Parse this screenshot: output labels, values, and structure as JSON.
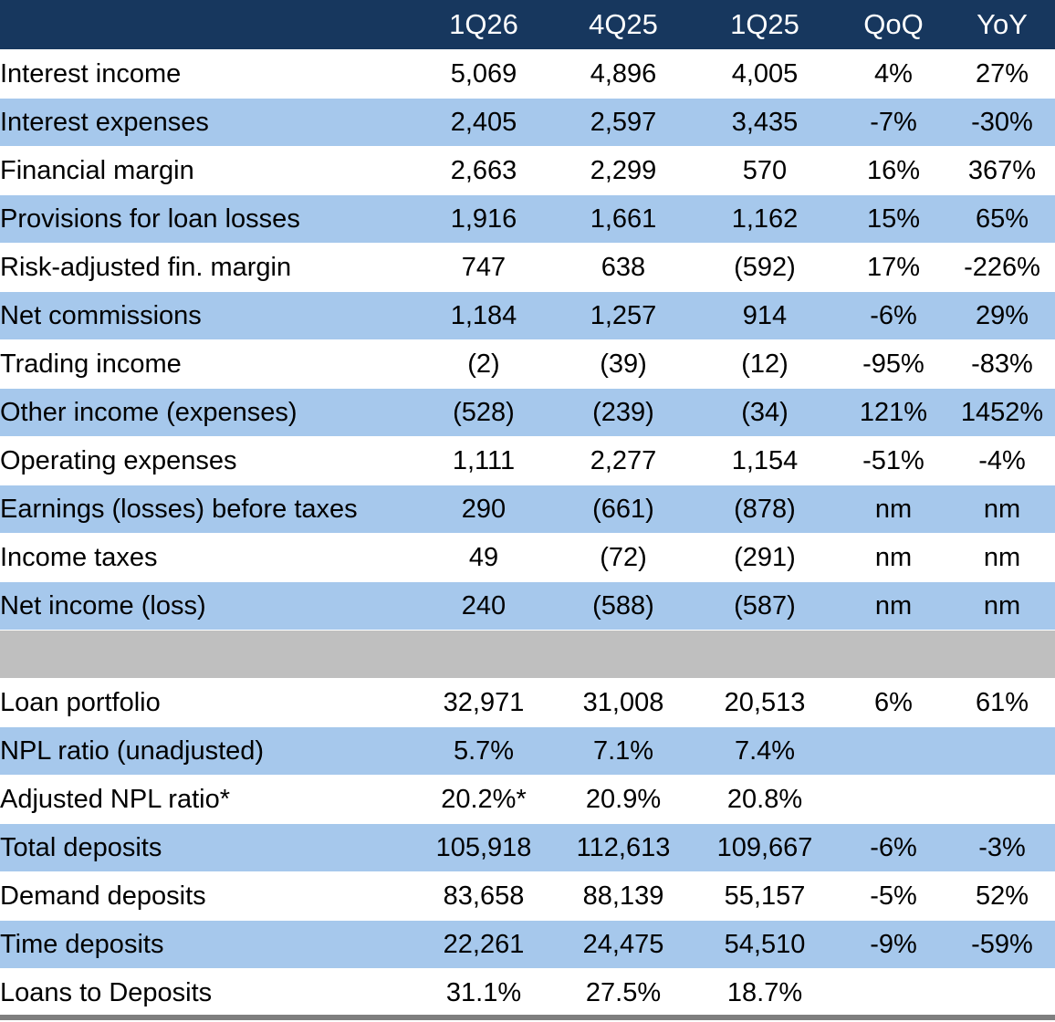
{
  "columns": [
    "",
    "1Q26",
    "4Q25",
    "1Q25",
    "QoQ",
    "YoY"
  ],
  "rows": [
    {
      "label": "Interest income",
      "indent": true,
      "shade": "white",
      "values": [
        "5,069",
        "4,896",
        "4,005",
        "4%",
        "27%"
      ]
    },
    {
      "label": "Interest expenses",
      "indent": true,
      "shade": "blue",
      "values": [
        "2,405",
        "2,597",
        "3,435",
        "-7%",
        "-30%"
      ]
    },
    {
      "label": "Financial margin",
      "indent": false,
      "shade": "white",
      "values": [
        "2,663",
        "2,299",
        "570",
        "16%",
        "367%"
      ]
    },
    {
      "label": "Provisions for loan losses",
      "indent": true,
      "shade": "blue",
      "values": [
        "1,916",
        "1,661",
        "1,162",
        "15%",
        "65%"
      ]
    },
    {
      "label": "Risk-adjusted fin. margin",
      "indent": false,
      "shade": "white",
      "values": [
        "747",
        "638",
        "(592)",
        "17%",
        "-226%"
      ]
    },
    {
      "label": "Net commissions",
      "indent": true,
      "shade": "blue",
      "values": [
        "1,184",
        "1,257",
        "914",
        "-6%",
        "29%"
      ]
    },
    {
      "label": "Trading income",
      "indent": true,
      "shade": "white",
      "values": [
        "(2)",
        "(39)",
        "(12)",
        "-95%",
        "-83%"
      ]
    },
    {
      "label": "Other income (expenses)",
      "indent": true,
      "shade": "blue",
      "values": [
        "(528)",
        "(239)",
        "(34)",
        "121%",
        "1452%"
      ]
    },
    {
      "label": "Operating expenses",
      "indent": true,
      "shade": "white",
      "values": [
        "1,111",
        "2,277",
        "1,154",
        "-51%",
        "-4%"
      ]
    },
    {
      "label": "Earnings (losses) before taxes",
      "indent": false,
      "shade": "blue",
      "values": [
        "290",
        "(661)",
        "(878)",
        "nm",
        "nm"
      ]
    },
    {
      "label": "Income taxes",
      "indent": true,
      "shade": "white",
      "values": [
        "49",
        "(72)",
        "(291)",
        "nm",
        "nm"
      ]
    },
    {
      "label": "Net income (loss)",
      "indent": false,
      "shade": "blue",
      "values": [
        "240",
        "(588)",
        "(587)",
        "nm",
        "nm"
      ]
    },
    {
      "separator": true
    },
    {
      "label": "Loan portfolio",
      "indent": false,
      "shade": "white",
      "values": [
        "32,971",
        "31,008",
        "20,513",
        "6%",
        "61%"
      ]
    },
    {
      "label": "NPL ratio (unadjusted)",
      "indent": false,
      "shade": "blue",
      "values": [
        "5.7%",
        "7.1%",
        "7.4%",
        "",
        ""
      ]
    },
    {
      "label": "Adjusted NPL ratio*",
      "indent": false,
      "shade": "white",
      "values": [
        "20.2%*",
        "20.9%",
        "20.8%",
        "",
        ""
      ]
    },
    {
      "label": "Total deposits",
      "indent": false,
      "shade": "blue",
      "values": [
        "105,918",
        "112,613",
        "109,667",
        "-6%",
        "-3%"
      ]
    },
    {
      "label": "Demand deposits",
      "indent": true,
      "shade": "white",
      "values": [
        "83,658",
        "88,139",
        "55,157",
        "-5%",
        "52%"
      ]
    },
    {
      "label": "Time deposits",
      "indent": true,
      "shade": "blue",
      "values": [
        "22,261",
        "24,475",
        "54,510",
        "-9%",
        "-59%"
      ]
    },
    {
      "label": "Loans to Deposits",
      "indent": false,
      "shade": "white",
      "values": [
        "31.1%",
        "27.5%",
        "18.7%",
        "",
        ""
      ]
    }
  ]
}
